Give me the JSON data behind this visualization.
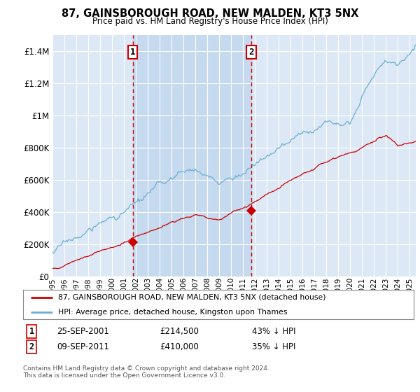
{
  "title": "87, GAINSBOROUGH ROAD, NEW MALDEN, KT3 5NX",
  "subtitle": "Price paid vs. HM Land Registry's House Price Index (HPI)",
  "ylim": [
    0,
    1500000
  ],
  "yticks": [
    0,
    200000,
    400000,
    600000,
    800000,
    1000000,
    1200000,
    1400000
  ],
  "ytick_labels": [
    "£0",
    "£200K",
    "£400K",
    "£600K",
    "£800K",
    "£1M",
    "£1.2M",
    "£1.4M"
  ],
  "background_color": "#ffffff",
  "plot_bg_color": "#dce8f5",
  "grid_color": "#ffffff",
  "shade_color": "#c5d9ef",
  "legend_entry1": "87, GAINSBOROUGH ROAD, NEW MALDEN, KT3 5NX (detached house)",
  "legend_entry2": "HPI: Average price, detached house, Kingston upon Thames",
  "annotation1_date": "25-SEP-2001",
  "annotation1_price": "£214,500",
  "annotation1_pct": "43% ↓ HPI",
  "annotation2_date": "09-SEP-2011",
  "annotation2_price": "£410,000",
  "annotation2_pct": "35% ↓ HPI",
  "footer": "Contains HM Land Registry data © Crown copyright and database right 2024.\nThis data is licensed under the Open Government Licence v3.0.",
  "hpi_color": "#6baed6",
  "sale_color": "#cc0000",
  "vline_color": "#cc0000",
  "sale1_x": 2001.73,
  "sale1_y": 214500,
  "sale2_x": 2011.69,
  "sale2_y": 410000,
  "xmin": 1995.0,
  "xmax": 2025.5,
  "xtick_years": [
    1995,
    1996,
    1997,
    1998,
    1999,
    2000,
    2001,
    2002,
    2003,
    2004,
    2005,
    2006,
    2007,
    2008,
    2009,
    2010,
    2011,
    2012,
    2013,
    2014,
    2015,
    2016,
    2017,
    2018,
    2019,
    2020,
    2021,
    2022,
    2023,
    2024,
    2025
  ]
}
